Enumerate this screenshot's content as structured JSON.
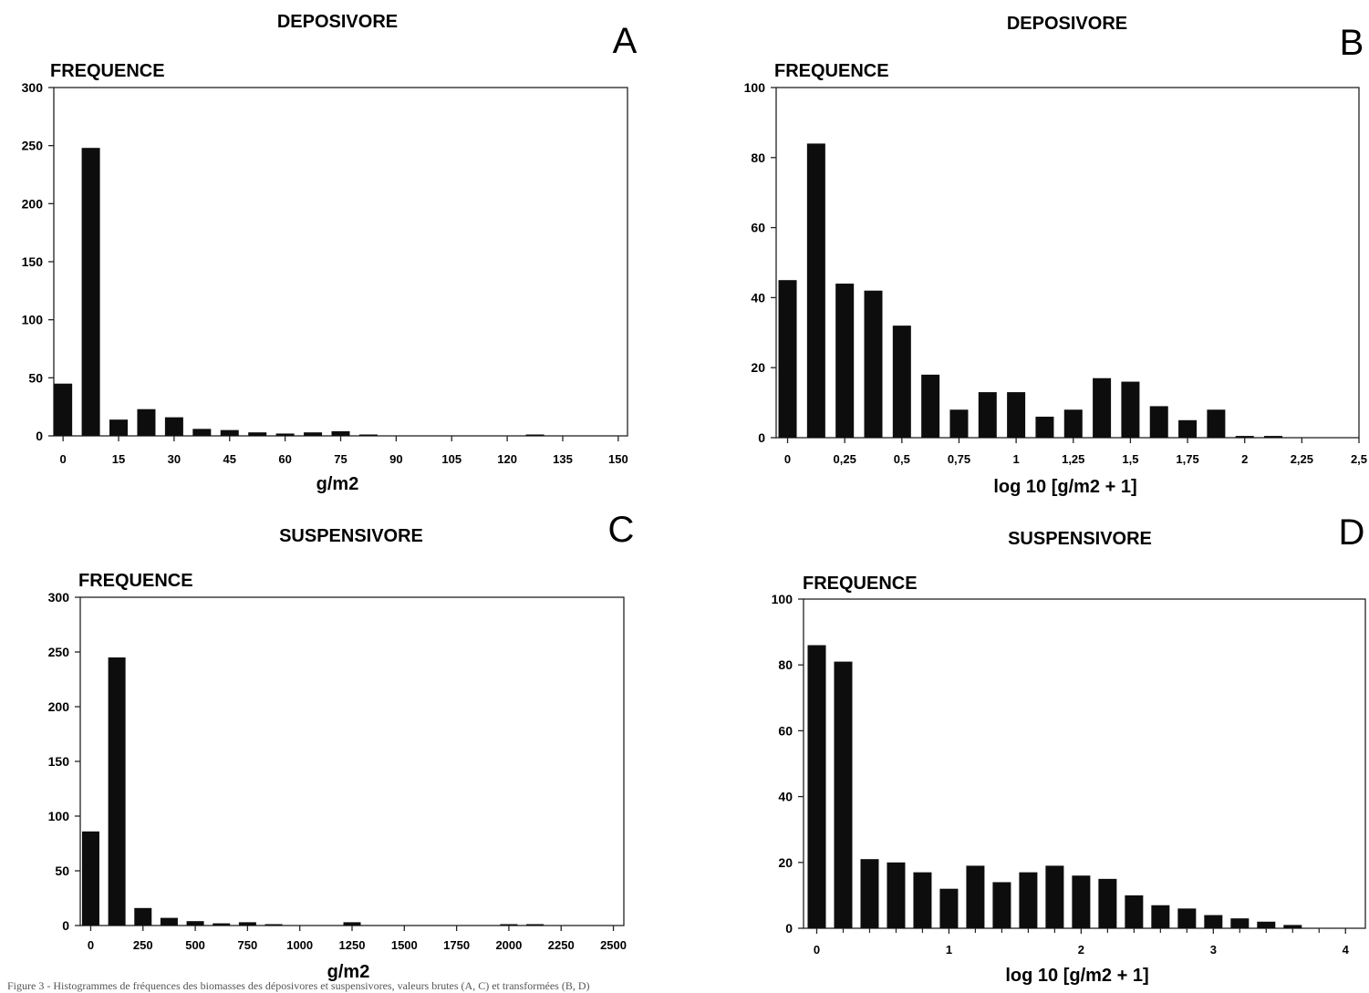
{
  "chart_data": [
    {
      "type": "bar",
      "panel_letter": "A",
      "title": "DEPOSIVORE",
      "ylabel": "FREQUENCE",
      "xlabel": "g/m2",
      "ylim": [
        0,
        300
      ],
      "y_ticks": [
        0,
        50,
        100,
        150,
        200,
        250,
        300
      ],
      "xlim": [
        -2.5,
        152.5
      ],
      "x_ticks": [
        0,
        15,
        30,
        45,
        60,
        75,
        90,
        105,
        120,
        135,
        150
      ],
      "x_tick_labels": [
        "0",
        "15",
        "30",
        "45",
        "60",
        "75",
        "90",
        "105",
        "120",
        "135",
        "150"
      ],
      "bin_width": 7.5,
      "x": [
        0,
        7.5,
        15,
        22.5,
        30,
        37.5,
        45,
        52.5,
        60,
        67.5,
        75,
        82.5,
        90,
        97.5,
        105,
        112.5,
        120,
        127.5,
        135,
        142.5,
        150
      ],
      "values": [
        45,
        248,
        14,
        23,
        16,
        6,
        5,
        3,
        2,
        3,
        4,
        1,
        0,
        0,
        0,
        0,
        0,
        1,
        0,
        0,
        0
      ]
    },
    {
      "type": "bar",
      "panel_letter": "B",
      "title": "DEPOSIVORE",
      "ylabel": "FREQUENCE",
      "xlabel": "log 10 [g/m2 + 1]",
      "ylim": [
        0,
        100
      ],
      "y_ticks": [
        0,
        20,
        40,
        60,
        80,
        100
      ],
      "xlim": [
        -0.05,
        2.5
      ],
      "x_ticks": [
        0,
        0.25,
        0.5,
        0.75,
        1,
        1.25,
        1.5,
        1.75,
        2,
        2.25,
        2.5
      ],
      "x_tick_labels": [
        "0",
        "0,25",
        "0,5",
        "0,75",
        "1",
        "1,25",
        "1,5",
        "1,75",
        "2",
        "2,25",
        "2,5"
      ],
      "bin_width": 0.125,
      "x": [
        0,
        0.125,
        0.25,
        0.375,
        0.5,
        0.625,
        0.75,
        0.875,
        1,
        1.125,
        1.25,
        1.375,
        1.5,
        1.625,
        1.75,
        1.875,
        2,
        2.125,
        2.25,
        2.375
      ],
      "values": [
        45,
        84,
        44,
        42,
        32,
        18,
        8,
        13,
        13,
        6,
        8,
        17,
        16,
        9,
        5,
        8,
        0.5,
        0.5,
        0,
        0
      ]
    },
    {
      "type": "bar",
      "panel_letter": "C",
      "title": "SUSPENSIVORE",
      "ylabel": "FREQUENCE",
      "xlabel": "g/m2",
      "ylim": [
        0,
        300
      ],
      "y_ticks": [
        0,
        50,
        100,
        150,
        200,
        250,
        300
      ],
      "xlim": [
        -50,
        2550
      ],
      "x_ticks": [
        0,
        250,
        500,
        750,
        1000,
        1250,
        1500,
        1750,
        2000,
        2250,
        2500
      ],
      "x_tick_labels": [
        "0",
        "250",
        "500",
        "750",
        "1000",
        "1250",
        "1500",
        "1750",
        "2000",
        "2250",
        "2500"
      ],
      "bin_width": 125,
      "x": [
        0,
        125,
        250,
        375,
        500,
        625,
        750,
        875,
        1000,
        1125,
        1250,
        1375,
        1500,
        1625,
        1750,
        1875,
        2000,
        2125,
        2250,
        2375,
        2500
      ],
      "values": [
        86,
        245,
        16,
        7,
        4,
        2,
        3,
        1,
        0,
        0,
        3,
        0,
        0,
        0,
        0,
        0,
        1,
        1,
        0,
        0,
        0
      ]
    },
    {
      "type": "bar",
      "panel_letter": "D",
      "title": "SUSPENSIVORE",
      "ylabel": "FREQUENCE",
      "xlabel": "log 10 [g/m2 + 1]",
      "ylim": [
        0,
        100
      ],
      "y_ticks": [
        0,
        20,
        40,
        60,
        80,
        100
      ],
      "xlim": [
        -0.1,
        4.15
      ],
      "x_ticks": [
        0,
        1,
        2,
        3,
        4
      ],
      "x_tick_labels": [
        "0",
        "1",
        "2",
        "3",
        "4"
      ],
      "minor_ticks": [
        0.2,
        0.4,
        0.6,
        0.8,
        1.2,
        1.4,
        1.6,
        1.8,
        2.2,
        2.4,
        2.6,
        2.8,
        3.2,
        3.4,
        3.6,
        3.8
      ],
      "bin_width": 0.2,
      "x": [
        0,
        0.2,
        0.4,
        0.6,
        0.8,
        1.0,
        1.2,
        1.4,
        1.6,
        1.8,
        2.0,
        2.2,
        2.4,
        2.6,
        2.8,
        3.0,
        3.2,
        3.4,
        3.6,
        3.8
      ],
      "values": [
        86,
        81,
        21,
        20,
        17,
        12,
        19,
        14,
        17,
        19,
        16,
        15,
        10,
        7,
        6,
        4,
        3,
        2,
        1,
        0
      ]
    }
  ],
  "caption": "Figure 3 - Histogrammes de fréquences des biomasses des déposivores et suspensivores, valeurs brutes (A, C) et transformées (B, D)"
}
